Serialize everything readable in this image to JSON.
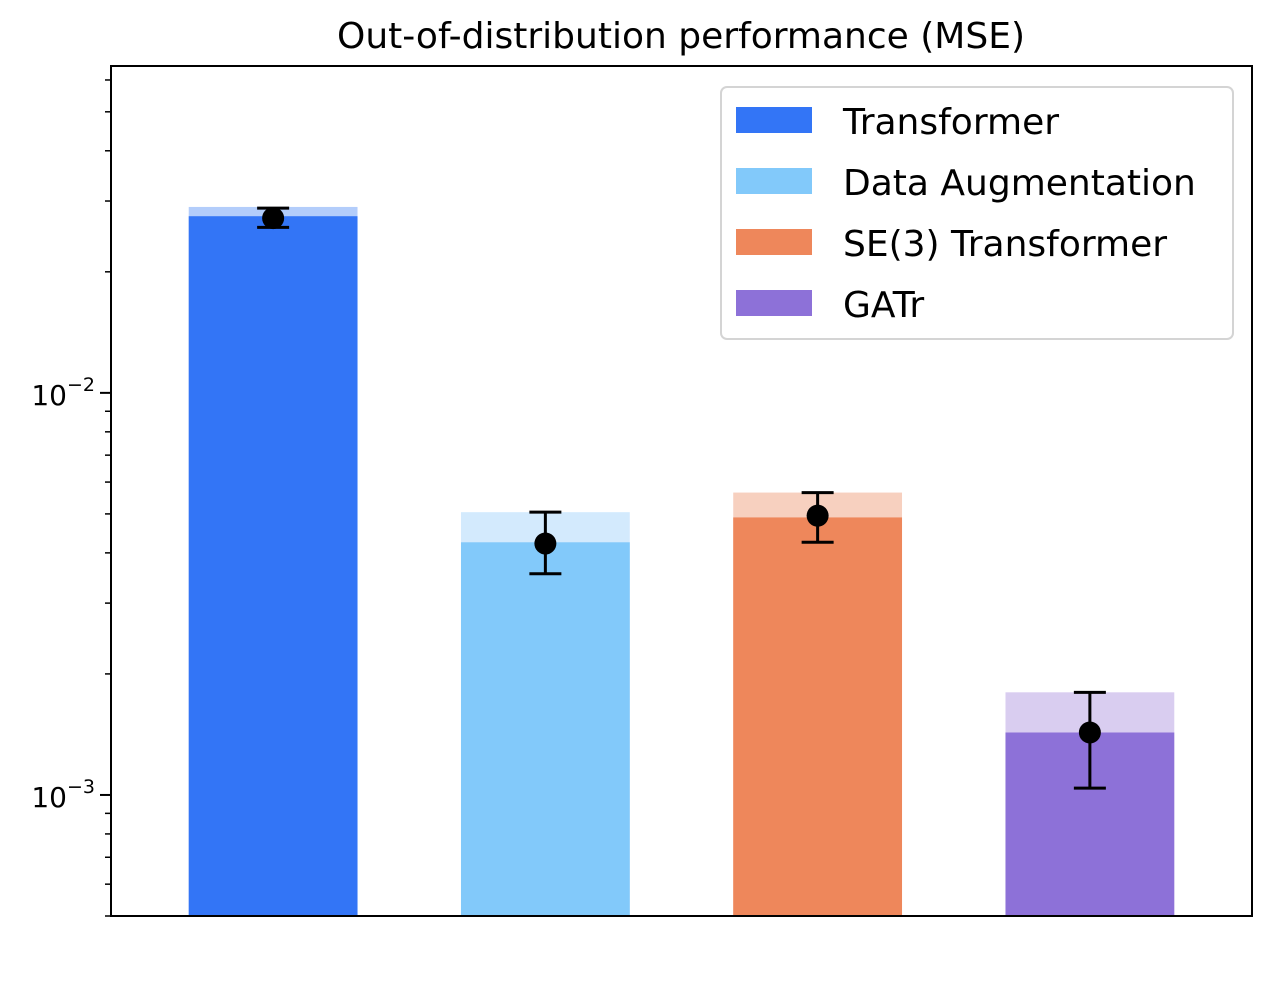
{
  "chart_data": {
    "type": "bar",
    "title": "Out-of-distribution performance (MSE)",
    "xlabel": "",
    "ylabel": "",
    "yscale": "log",
    "ylim": [
      0.0005,
      0.065
    ],
    "yticks": [
      {
        "value": 0.01,
        "base": "10",
        "exp": "−2"
      },
      {
        "value": 0.001,
        "base": "10",
        "exp": "−3"
      }
    ],
    "legend_position": "top-right",
    "series": [
      {
        "name": "Transformer",
        "color": "#3375f6",
        "light_color": "#b3cdfb",
        "value": 0.0275,
        "upper": 0.029,
        "marker": 0.0272,
        "err_low": 0.0258,
        "err_high": 0.0288
      },
      {
        "name": "Data Augmentation",
        "color": "#82c9fa",
        "light_color": "#d3eafd",
        "value": 0.00425,
        "upper": 0.00505,
        "marker": 0.00422,
        "err_low": 0.00355,
        "err_high": 0.00505
      },
      {
        "name": "SE(3) Transformer",
        "color": "#ee875b",
        "light_color": "#f7d0bf",
        "value": 0.0049,
        "upper": 0.00565,
        "marker": 0.00495,
        "err_low": 0.00425,
        "err_high": 0.00565
      },
      {
        "name": "GATr",
        "color": "#8d71d8",
        "light_color": "#d9cdf0",
        "value": 0.00143,
        "upper": 0.0018,
        "marker": 0.00143,
        "err_low": 0.00104,
        "err_high": 0.0018
      }
    ]
  }
}
